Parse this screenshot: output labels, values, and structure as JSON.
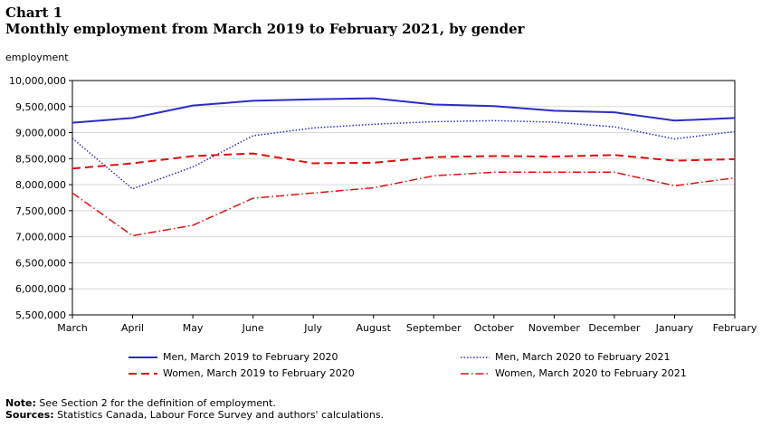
{
  "header": {
    "chart_number": "Chart 1",
    "title": "Monthly employment from March 2019 to February 2021, by gender"
  },
  "notes": {
    "note_label": "Note:",
    "note_text": " See Section 2 for the definition of employment.",
    "sources_label": "Sources:",
    "sources_text": " Statistics Canada, Labour Force Survey and authors' calculations."
  },
  "colors": {
    "blue": "#2b2bc8",
    "red": "#e01010",
    "grid": "#d9d9d9",
    "axis": "#000000"
  },
  "chart_data": {
    "type": "line",
    "title": "Monthly employment from March 2019 to February 2021, by gender",
    "ylabel": "employment",
    "xlabel": "",
    "ylim": [
      5500000,
      10000000
    ],
    "yticks": [
      5500000,
      6000000,
      6500000,
      7000000,
      7500000,
      8000000,
      8500000,
      9000000,
      9500000,
      10000000
    ],
    "ytick_labels": [
      "5,500,000",
      "6,000,000",
      "6,500,000",
      "7,000,000",
      "7,500,000",
      "8,000,000",
      "8,500,000",
      "9,000,000",
      "9,500,000",
      "10,000,000"
    ],
    "grid": true,
    "legend_position": "bottom",
    "categories": [
      "March",
      "April",
      "May",
      "June",
      "July",
      "August",
      "September",
      "October",
      "November",
      "December",
      "January",
      "February"
    ],
    "series": [
      {
        "name": "Men, March 2019 to February 2020",
        "color": "#2b2bc8",
        "style": "solid",
        "values": [
          9190000,
          9280000,
          9520000,
          9610000,
          9640000,
          9660000,
          9540000,
          9510000,
          9420000,
          9390000,
          9230000,
          9280000
        ]
      },
      {
        "name": "Men, March 2020 to February 2021",
        "color": "#2b2bc8",
        "style": "dotted",
        "values": [
          8890000,
          7920000,
          8340000,
          8940000,
          9090000,
          9160000,
          9210000,
          9230000,
          9200000,
          9110000,
          8880000,
          9020000
        ]
      },
      {
        "name": "Women, March 2019 to February 2020",
        "color": "#e01010",
        "style": "dashed",
        "values": [
          8310000,
          8410000,
          8550000,
          8600000,
          8410000,
          8420000,
          8530000,
          8550000,
          8540000,
          8570000,
          8460000,
          8490000
        ]
      },
      {
        "name": "Women, March 2020 to February 2021",
        "color": "#e01010",
        "style": "dashdot",
        "values": [
          7840000,
          7020000,
          7220000,
          7740000,
          7840000,
          7940000,
          8170000,
          8240000,
          8240000,
          8240000,
          7980000,
          8130000
        ]
      }
    ]
  }
}
